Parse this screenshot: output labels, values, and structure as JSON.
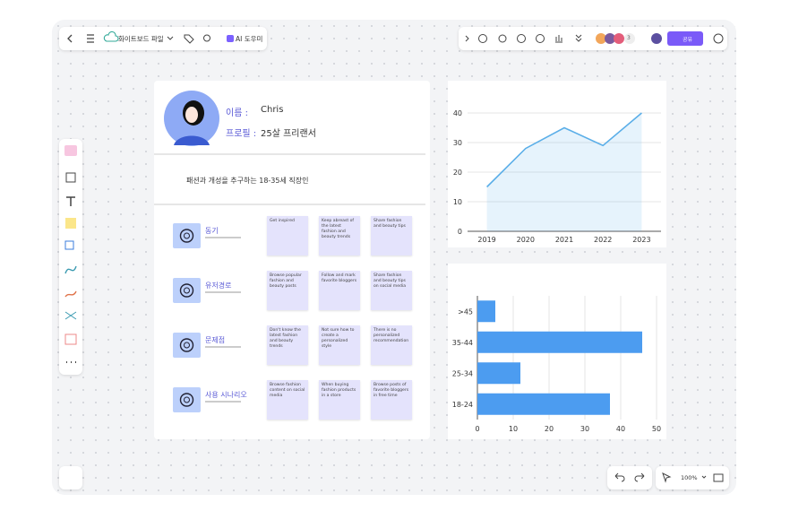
{
  "toolbar": {
    "file_name": "화이트보드 파일",
    "ai_button": "AI 도우미",
    "collaborator_count": "3",
    "share_button": "공유",
    "zoom": "100%"
  },
  "persona": {
    "name_label": "이름 :",
    "name": "Chris",
    "profile_label": "프로필 :",
    "profile": "25살 프리랜서",
    "summary": "패션과 개성을 추구하는 18-35세 직장인",
    "rows": [
      {
        "title": "동기",
        "notes": [
          "Get inspired",
          "Keep abreast of the latest fashion and beauty trends",
          "Share fashion and beauty tips"
        ]
      },
      {
        "title": "유저경로",
        "notes": [
          "Browse popular fashion and beauty posts",
          "Follow and mark favorite bloggers",
          "Share fashion and beauty tips on social media"
        ]
      },
      {
        "title": "문제점",
        "notes": [
          "Don't know the latest fashion and beauty trends",
          "Not sure how to create a personalized style",
          "There is no personalized recommendation"
        ]
      },
      {
        "title": "사용 시나리오",
        "notes": [
          "Browse fashion content on social media",
          "When buying fashion products in a store",
          "Browse posts of favorite bloggers in free time"
        ]
      }
    ]
  },
  "chart_data": [
    {
      "type": "line",
      "categories": [
        "2019",
        "2020",
        "2021",
        "2022",
        "2023"
      ],
      "values": [
        15,
        28,
        35,
        29,
        40
      ],
      "color": "#5aaee8",
      "ylim": [
        0,
        40
      ],
      "yticks": [
        0,
        10,
        20,
        30,
        40
      ],
      "grid": true
    },
    {
      "type": "bar",
      "orientation": "horizontal",
      "categories": [
        "18-24",
        "25-34",
        "35-44",
        ">45"
      ],
      "values": [
        37,
        12,
        46,
        5
      ],
      "color": "#4c9cf0",
      "xlim": [
        0,
        50
      ],
      "xticks": [
        0,
        10,
        20,
        30,
        40,
        50
      ],
      "grid": true
    }
  ]
}
